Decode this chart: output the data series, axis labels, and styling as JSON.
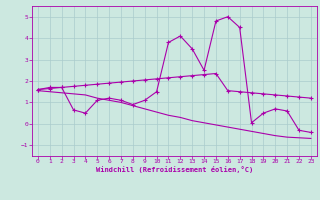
{
  "xlabel": "Windchill (Refroidissement éolien,°C)",
  "xlim": [
    -0.5,
    23.5
  ],
  "ylim": [
    -1.5,
    5.5
  ],
  "yticks": [
    -1,
    0,
    1,
    2,
    3,
    4,
    5
  ],
  "xticks": [
    0,
    1,
    2,
    3,
    4,
    5,
    6,
    7,
    8,
    9,
    10,
    11,
    12,
    13,
    14,
    15,
    16,
    17,
    18,
    19,
    20,
    21,
    22,
    23
  ],
  "background_color": "#cce8e0",
  "line_color": "#aa00aa",
  "grid_color": "#aacccc",
  "line1_x": [
    0,
    1,
    2,
    3,
    4,
    5,
    6,
    7,
    8,
    9,
    10,
    11,
    12,
    13,
    14,
    15,
    16,
    17,
    18,
    19,
    20,
    21,
    22,
    23
  ],
  "line1_y": [
    1.6,
    1.7,
    1.7,
    0.65,
    0.5,
    1.1,
    1.2,
    1.1,
    0.9,
    1.1,
    1.5,
    3.8,
    4.1,
    3.5,
    2.5,
    4.8,
    5.0,
    4.5,
    0.05,
    0.5,
    0.7,
    0.6,
    -0.3,
    -0.4
  ],
  "line2_x": [
    0,
    1,
    2,
    3,
    4,
    5,
    6,
    7,
    8,
    9,
    10,
    11,
    12,
    13,
    14,
    15,
    16,
    17,
    18,
    19,
    20,
    21,
    22,
    23
  ],
  "line2_y": [
    1.6,
    1.65,
    1.7,
    1.75,
    1.8,
    1.85,
    1.9,
    1.95,
    2.0,
    2.05,
    2.1,
    2.15,
    2.2,
    2.25,
    2.3,
    2.35,
    1.55,
    1.5,
    1.45,
    1.4,
    1.35,
    1.3,
    1.25,
    1.2
  ],
  "line3_x": [
    0,
    1,
    2,
    3,
    4,
    5,
    6,
    7,
    8,
    9,
    10,
    11,
    12,
    13,
    14,
    15,
    16,
    17,
    18,
    19,
    20,
    21,
    22,
    23
  ],
  "line3_y": [
    1.55,
    1.5,
    1.45,
    1.4,
    1.35,
    1.2,
    1.1,
    1.0,
    0.85,
    0.7,
    0.55,
    0.4,
    0.3,
    0.15,
    0.05,
    -0.05,
    -0.15,
    -0.25,
    -0.35,
    -0.45,
    -0.55,
    -0.62,
    -0.65,
    -0.68
  ]
}
